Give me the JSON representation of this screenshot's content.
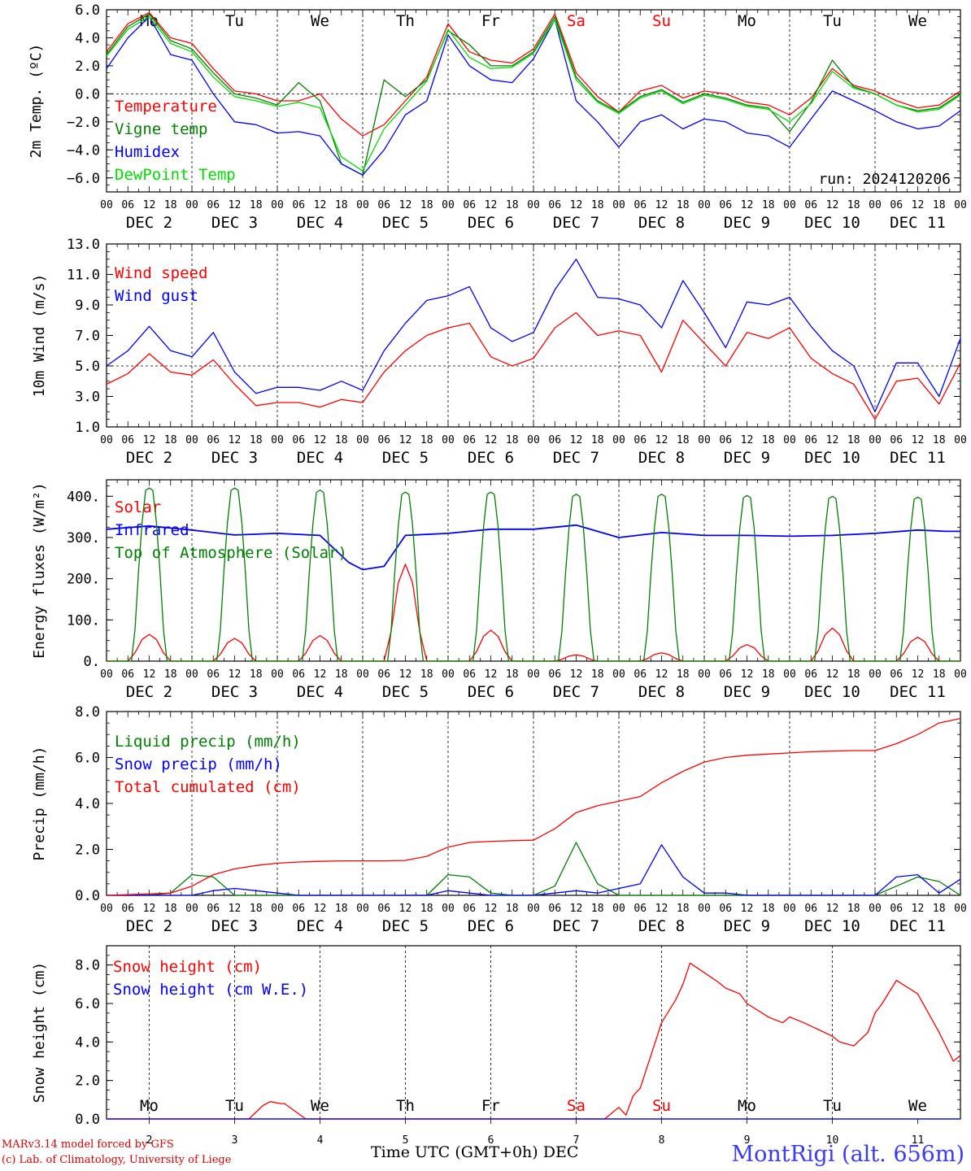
{
  "run_label": "run: 2024120206",
  "footer": {
    "model": "MARv3.14 model forced by GFS",
    "lab": "(c) Lab. of Climatology, University of Liege",
    "station": "MontRigi (alt. 656m)",
    "xtitle": "Time UTC (GMT+0h) DEC"
  },
  "days": [
    "2",
    "3",
    "4",
    "5",
    "6",
    "7",
    "8",
    "9",
    "10",
    "11"
  ],
  "weekdays": [
    "Mo",
    "Tu",
    "We",
    "Th",
    "Fr",
    "Sa",
    "Su",
    "Mo",
    "Tu",
    "We"
  ],
  "weekday_colors": [
    "#000000",
    "#000000",
    "#000000",
    "#000000",
    "#000000",
    "#ff0000",
    "#ff0000",
    "#000000",
    "#000000",
    "#000000"
  ],
  "hour_ticks": [
    "00",
    "06",
    "12",
    "18"
  ],
  "month_label": "DEC",
  "chart_data": [
    {
      "type": "line",
      "ylabel": "2m Temp. (ºC)",
      "ylim": [
        -7,
        6
      ],
      "yticks": [
        "6.0",
        "4.0",
        "2.0",
        "0.0",
        "−2.0",
        "−4.0",
        "−6.0"
      ],
      "ytick_values": [
        6,
        4,
        2,
        0,
        -2,
        -4,
        -6
      ],
      "x_unit": "hours since DEC 2 00 UTC",
      "x": [
        0,
        6,
        12,
        18,
        24,
        30,
        36,
        42,
        48,
        54,
        60,
        66,
        72,
        78,
        84,
        90,
        96,
        102,
        108,
        114,
        120,
        126,
        132,
        138,
        144,
        150,
        156,
        162,
        168,
        174,
        180,
        186,
        192,
        198,
        204,
        210,
        216,
        222,
        228,
        234,
        240
      ],
      "series": [
        {
          "name": "Temperature",
          "color": "#ff0000",
          "values": [
            3.0,
            5.0,
            5.8,
            4.0,
            3.6,
            1.8,
            0.2,
            0.0,
            -0.5,
            -0.5,
            0.0,
            -1.8,
            -3.0,
            -2.2,
            -0.5,
            1.2,
            5.0,
            3.0,
            2.4,
            2.2,
            3.2,
            5.7,
            1.5,
            -0.2,
            -1.3,
            0.2,
            0.6,
            -0.3,
            0.2,
            0.0,
            -0.6,
            -0.8,
            -1.5,
            -0.3,
            1.8,
            0.6,
            0.2,
            -0.5,
            -1.0,
            -0.8,
            0.2
          ]
        },
        {
          "name": "Vigne temp",
          "color": "#008000",
          "values": [
            2.8,
            4.8,
            5.7,
            3.8,
            3.2,
            1.5,
            0.0,
            -0.3,
            -0.8,
            0.8,
            -0.5,
            -5.0,
            -5.8,
            1.0,
            -0.2,
            1.0,
            4.5,
            3.5,
            2.0,
            2.0,
            3.0,
            5.5,
            1.2,
            -0.5,
            -1.3,
            -0.2,
            0.3,
            -0.6,
            0.0,
            -0.3,
            -0.8,
            -1.0,
            -2.7,
            -0.6,
            2.4,
            0.5,
            0.0,
            -0.8,
            -1.2,
            -1.0,
            0.0
          ]
        },
        {
          "name": "Humidex",
          "color": "#0000ff",
          "values": [
            1.8,
            4.0,
            5.5,
            2.8,
            2.4,
            0.0,
            -2.0,
            -2.2,
            -2.8,
            -2.7,
            -3.0,
            -5.0,
            -5.8,
            -4.0,
            -1.5,
            -0.5,
            4.2,
            2.0,
            1.0,
            0.8,
            2.5,
            5.3,
            -0.5,
            -2.0,
            -3.8,
            -2.0,
            -1.5,
            -2.5,
            -1.8,
            -2.0,
            -2.8,
            -3.0,
            -3.8,
            -1.8,
            0.2,
            -0.5,
            -1.2,
            -2.0,
            -2.5,
            -2.3,
            -1.2
          ]
        },
        {
          "name": "DewPoint Temp",
          "color": "#00dd00",
          "values": [
            2.7,
            4.6,
            5.5,
            3.6,
            3.0,
            1.2,
            -0.2,
            -0.5,
            -0.9,
            -0.6,
            -1.0,
            -4.5,
            -5.5,
            -2.5,
            -0.8,
            0.9,
            4.6,
            2.6,
            1.8,
            1.9,
            2.9,
            5.3,
            1.0,
            -0.6,
            -1.4,
            -0.3,
            0.2,
            -0.7,
            -0.1,
            -0.4,
            -0.9,
            -1.1,
            -2.0,
            -0.7,
            1.6,
            0.4,
            0.0,
            -0.8,
            -1.3,
            -1.1,
            -0.1
          ]
        }
      ]
    },
    {
      "type": "line",
      "ylabel": "10m Wind (m/s)",
      "ylim": [
        1,
        13
      ],
      "yticks": [
        "13.0",
        "11.0",
        "9.0",
        "7.0",
        "5.0",
        "3.0",
        "1.0"
      ],
      "ytick_values": [
        13,
        11,
        9,
        7,
        5,
        3,
        1
      ],
      "x": [
        0,
        6,
        12,
        18,
        24,
        30,
        36,
        42,
        48,
        54,
        60,
        66,
        72,
        78,
        84,
        90,
        96,
        102,
        108,
        114,
        120,
        126,
        132,
        138,
        144,
        150,
        156,
        162,
        168,
        174,
        180,
        186,
        192,
        198,
        204,
        210,
        216,
        222,
        228,
        234,
        240
      ],
      "series": [
        {
          "name": "Wind speed",
          "color": "#ff0000",
          "values": [
            3.8,
            4.5,
            5.8,
            4.6,
            4.4,
            5.4,
            3.8,
            2.4,
            2.6,
            2.6,
            2.3,
            2.8,
            2.6,
            4.6,
            6.0,
            7.0,
            7.5,
            7.8,
            5.6,
            5.0,
            5.5,
            7.5,
            8.5,
            7.0,
            7.3,
            7.0,
            4.6,
            8.0,
            6.5,
            5.0,
            7.2,
            6.8,
            7.5,
            5.5,
            4.5,
            3.8,
            1.5,
            4.0,
            4.2,
            2.5,
            5.2
          ]
        },
        {
          "name": "Wind gust",
          "color": "#0000ff",
          "values": [
            5.0,
            6.0,
            7.6,
            6.0,
            5.6,
            7.2,
            4.6,
            3.2,
            3.6,
            3.6,
            3.4,
            4.0,
            3.4,
            6.0,
            7.8,
            9.3,
            9.6,
            10.2,
            7.5,
            6.6,
            7.2,
            10.0,
            12.0,
            9.5,
            9.4,
            9.0,
            7.5,
            10.6,
            8.5,
            6.2,
            9.2,
            9.0,
            9.5,
            7.6,
            6.0,
            5.0,
            2.0,
            5.2,
            5.2,
            3.0,
            6.8
          ]
        }
      ]
    },
    {
      "type": "line",
      "ylabel": "Energy fluxes (W/m²)",
      "ylim": [
        0,
        440
      ],
      "yticks": [
        "400.",
        "300.",
        "200.",
        "100.",
        "0."
      ],
      "ytick_values": [
        400,
        300,
        200,
        100,
        0
      ],
      "series": [
        {
          "name": "Solar",
          "color": "#ff0000",
          "peaks": [
            65,
            55,
            62,
            235,
            75,
            15,
            20,
            40,
            80,
            58
          ]
        },
        {
          "name": "Infrared",
          "color": "#0000ff",
          "x": [
            0,
            12,
            24,
            36,
            48,
            60,
            68,
            72,
            78,
            84,
            96,
            108,
            120,
            132,
            144,
            156,
            168,
            180,
            192,
            204,
            216,
            228,
            236,
            240
          ],
          "values": [
            320,
            328,
            318,
            306,
            310,
            305,
            240,
            222,
            230,
            305,
            310,
            320,
            320,
            330,
            300,
            312,
            305,
            305,
            303,
            305,
            310,
            318,
            315,
            315
          ]
        },
        {
          "name": "Top of Atmosphere (Solar)",
          "color": "#008000",
          "peaks": [
            420,
            420,
            415,
            410,
            410,
            405,
            405,
            402,
            400,
            398
          ]
        }
      ]
    },
    {
      "type": "line",
      "ylabel": "Precip (mm/h)",
      "ylim": [
        0,
        8
      ],
      "yticks": [
        "8.0",
        "6.0",
        "4.0",
        "2.0",
        "0.0"
      ],
      "ytick_values": [
        8,
        6,
        4,
        2,
        0
      ],
      "x": [
        0,
        6,
        12,
        18,
        24,
        30,
        36,
        42,
        48,
        54,
        60,
        66,
        72,
        78,
        84,
        90,
        96,
        102,
        108,
        114,
        120,
        126,
        132,
        138,
        144,
        150,
        156,
        162,
        168,
        174,
        180,
        186,
        192,
        198,
        204,
        210,
        216,
        222,
        228,
        234,
        240
      ],
      "series": [
        {
          "name": "Liquid precip (mm/h)",
          "color": "#008000",
          "values": [
            0,
            0,
            0,
            0.1,
            0.9,
            0.8,
            0,
            0,
            0,
            0,
            0,
            0,
            0,
            0,
            0,
            0,
            0.9,
            0.8,
            0.1,
            0,
            0,
            0.4,
            2.3,
            0.5,
            0,
            0,
            0,
            0,
            0,
            0,
            0,
            0,
            0,
            0,
            0,
            0,
            0,
            0.4,
            0.8,
            0.6,
            0
          ]
        },
        {
          "name": "Snow precip (mm/h)",
          "color": "#0000ff",
          "values": [
            0,
            0,
            0,
            0,
            0,
            0.2,
            0.3,
            0.2,
            0.1,
            0,
            0,
            0,
            0,
            0,
            0,
            0,
            0.2,
            0.1,
            0,
            0,
            0,
            0.1,
            0.2,
            0.1,
            0.3,
            0.5,
            2.2,
            0.8,
            0.1,
            0.1,
            0,
            0,
            0,
            0,
            0,
            0,
            0,
            0.8,
            0.9,
            0.1,
            0.7
          ]
        },
        {
          "name": "Total cumulated (cm)",
          "color": "#ff0000",
          "values": [
            0,
            0.03,
            0.06,
            0.1,
            0.4,
            0.9,
            1.15,
            1.3,
            1.4,
            1.45,
            1.48,
            1.5,
            1.5,
            1.5,
            1.52,
            1.7,
            2.1,
            2.3,
            2.35,
            2.38,
            2.4,
            2.9,
            3.6,
            3.9,
            4.1,
            4.3,
            4.9,
            5.4,
            5.8,
            6.0,
            6.1,
            6.15,
            6.2,
            6.25,
            6.28,
            6.3,
            6.3,
            6.6,
            7.0,
            7.5,
            7.7
          ]
        }
      ]
    },
    {
      "type": "line",
      "ylabel": "Snow height (cm)",
      "ylim": [
        0,
        9
      ],
      "yticks": [
        "8.0",
        "6.0",
        "4.0",
        "2.0",
        "0.0"
      ],
      "ytick_values": [
        8,
        6,
        4,
        2,
        0
      ],
      "x": [
        0,
        40,
        44,
        46,
        49,
        50,
        56,
        60,
        100,
        140,
        144,
        146,
        148,
        150,
        156,
        160,
        162,
        164,
        168,
        172,
        174,
        178,
        180,
        186,
        190,
        192,
        196,
        204,
        206,
        210,
        214,
        216,
        218,
        222,
        228,
        234,
        238,
        240
      ],
      "series": [
        {
          "name": "Snow height (cm)",
          "color": "#ff0000",
          "values": [
            0,
            0,
            0.7,
            0.9,
            0.8,
            0.8,
            0,
            0,
            0,
            0,
            0.6,
            0.2,
            1.2,
            1.6,
            5.0,
            6.2,
            7.0,
            8.1,
            7.6,
            7.1,
            6.8,
            6.5,
            6.0,
            5.3,
            5.0,
            5.3,
            5.0,
            4.3,
            4.0,
            3.8,
            4.5,
            5.5,
            6.0,
            7.2,
            6.5,
            4.5,
            3.0,
            3.3
          ]
        },
        {
          "name": "Snow height (cm W.E.)",
          "color": "#0000ff",
          "values": [
            0,
            0,
            0,
            0,
            0,
            0,
            0,
            0,
            0,
            0,
            0,
            0,
            0,
            0,
            0,
            0,
            0,
            0,
            0,
            0,
            0,
            0,
            0,
            0,
            0,
            0,
            0,
            0,
            0,
            0,
            0,
            0,
            0,
            0,
            0,
            0,
            0,
            0
          ]
        }
      ]
    }
  ]
}
